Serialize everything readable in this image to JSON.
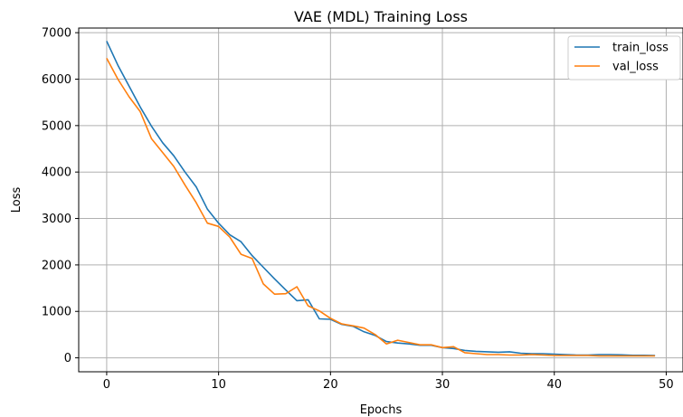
{
  "chart_data": {
    "type": "line",
    "title": "VAE (MDL) Training Loss",
    "xlabel": "Epochs",
    "ylabel": "Loss",
    "xlim": [
      -2.5,
      51.5
    ],
    "ylim": [
      -300,
      7100
    ],
    "xticks": [
      0,
      10,
      20,
      30,
      40,
      50
    ],
    "yticks": [
      0,
      1000,
      2000,
      3000,
      4000,
      5000,
      6000,
      7000
    ],
    "grid": true,
    "legend_position": "top-right",
    "x": [
      0,
      1,
      2,
      3,
      4,
      5,
      6,
      7,
      8,
      9,
      10,
      11,
      12,
      13,
      14,
      15,
      16,
      17,
      18,
      19,
      20,
      21,
      22,
      23,
      24,
      25,
      26,
      27,
      28,
      29,
      30,
      31,
      32,
      33,
      34,
      35,
      36,
      37,
      38,
      39,
      40,
      41,
      42,
      43,
      44,
      45,
      46,
      47,
      48,
      49
    ],
    "series": [
      {
        "name": "train_loss",
        "color": "#1f77b4",
        "values": [
          6820,
          6300,
          5850,
          5400,
          4990,
          4630,
          4350,
          4000,
          3680,
          3200,
          2900,
          2650,
          2500,
          2200,
          1950,
          1700,
          1460,
          1230,
          1250,
          840,
          830,
          720,
          680,
          560,
          480,
          350,
          320,
          300,
          270,
          270,
          220,
          200,
          160,
          140,
          130,
          120,
          130,
          100,
          90,
          90,
          80,
          70,
          60,
          60,
          70,
          70,
          65,
          55,
          55,
          50
        ]
      },
      {
        "name": "val_loss",
        "color": "#ff7f0e",
        "values": [
          6450,
          6000,
          5620,
          5300,
          4720,
          4420,
          4120,
          3720,
          3340,
          2900,
          2830,
          2600,
          2230,
          2140,
          1590,
          1370,
          1380,
          1530,
          1120,
          1010,
          850,
          730,
          690,
          640,
          500,
          300,
          380,
          330,
          280,
          280,
          220,
          240,
          110,
          90,
          70,
          70,
          60,
          60,
          70,
          60,
          50,
          50,
          50,
          50,
          40,
          40,
          40,
          40,
          40,
          40
        ]
      }
    ]
  }
}
